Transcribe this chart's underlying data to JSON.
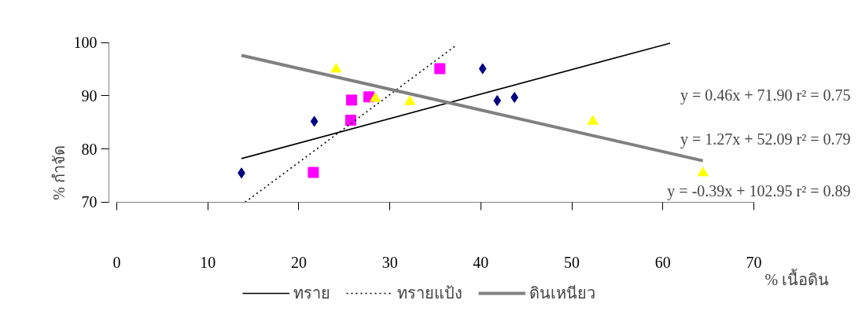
{
  "chart_data": {
    "type": "scatter",
    "xlabel": "% เนื้อดิน",
    "ylabel": "% กำจัด",
    "xlim": [
      0,
      70
    ],
    "ylim": [
      70,
      100
    ],
    "xticks": [
      0,
      10,
      20,
      30,
      40,
      50,
      60,
      70
    ],
    "yticks": [
      70,
      80,
      90,
      100
    ],
    "grid": false,
    "legend": "bottom",
    "series": [
      {
        "marker": "diamond",
        "color": "#000080",
        "x": [
          13.7,
          21.7,
          40.2,
          41.8,
          43.7
        ],
        "values": [
          75.5,
          85.2,
          95.1,
          89.1,
          89.7
        ]
      },
      {
        "marker": "square",
        "color": "#ff00ff",
        "x": [
          21.6,
          25.7,
          25.8,
          27.7,
          35.5
        ],
        "values": [
          75.6,
          85.4,
          89.2,
          89.8,
          95.1
        ]
      },
      {
        "marker": "triangle",
        "color": "#ffff00",
        "x": [
          24.1,
          28.4,
          32.2,
          52.3,
          64.4
        ],
        "values": [
          95.0,
          89.5,
          88.9,
          85.2,
          75.5
        ]
      },
      {
        "type": "line",
        "name": "ทราย",
        "line_style": "solid",
        "color": "#000000",
        "x": [
          13.7,
          60.8
        ],
        "values": [
          78.2,
          99.9
        ]
      },
      {
        "type": "line",
        "name": "ทรายแป้ง",
        "line_style": "dotted",
        "color": "#000000",
        "x": [
          14.1,
          37.3
        ],
        "values": [
          70.0,
          99.5
        ]
      },
      {
        "type": "line",
        "name": "ดินเหนียว",
        "line_style": "solid",
        "color": "#808080",
        "x": [
          13.7,
          64.4
        ],
        "values": [
          97.6,
          77.8
        ]
      }
    ],
    "annotations": [
      "y = 0.46x + 71.90  r² = 0.75",
      "y = 1.27x + 52.09  r² = 0.79",
      "y = -0.39x + 102.95  r² = 0.89"
    ]
  }
}
